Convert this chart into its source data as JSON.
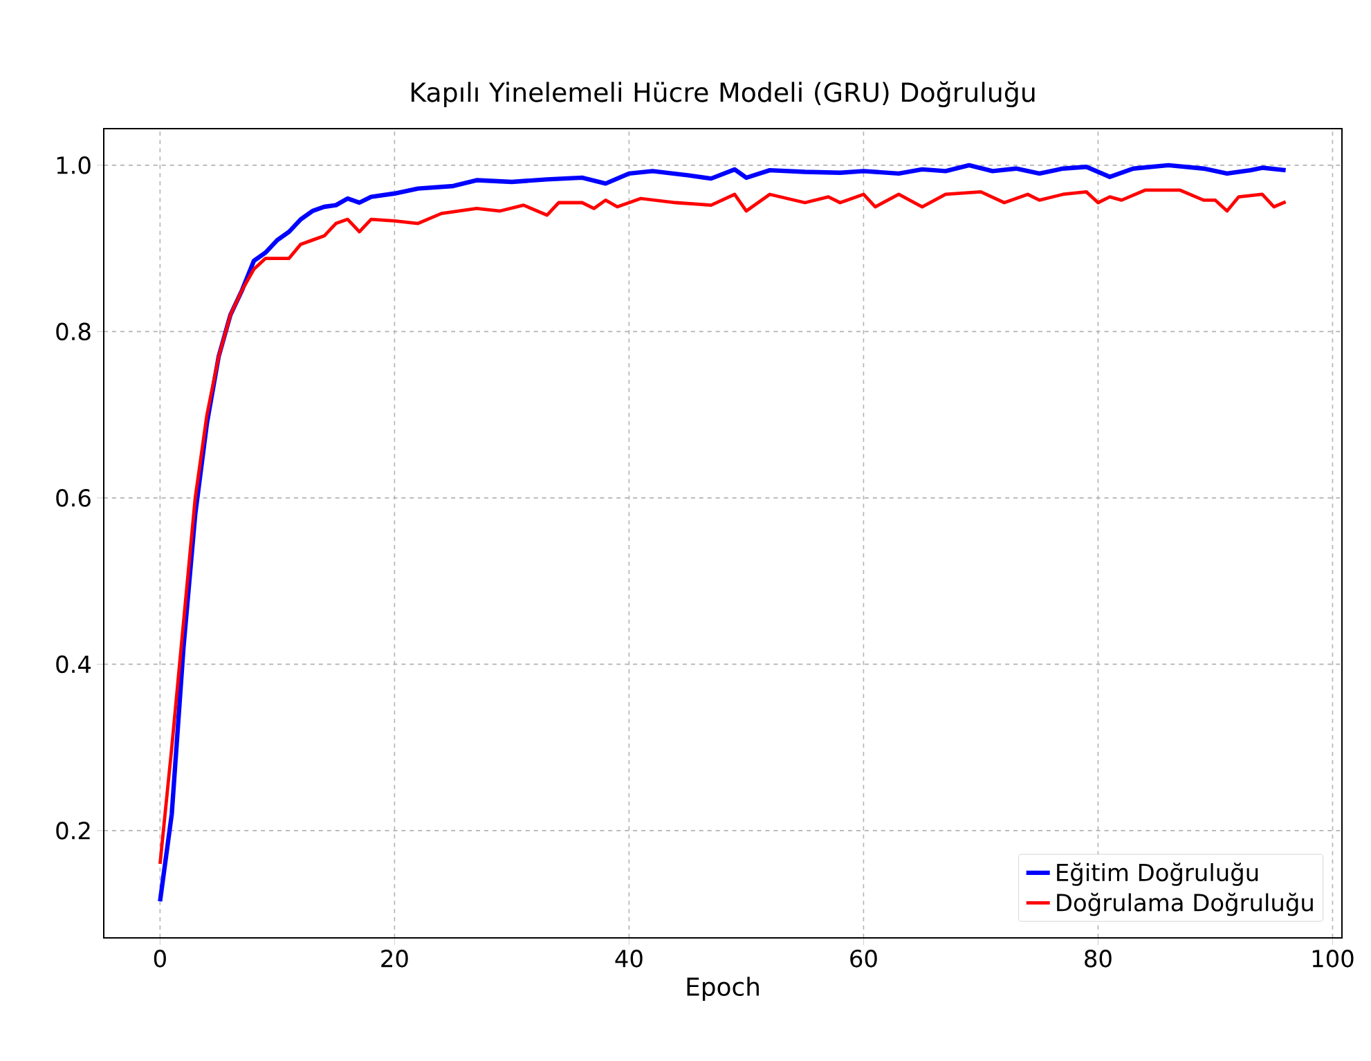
{
  "chart_data": {
    "type": "line",
    "title": "Kapılı Yinelemeli Hücre Modeli (GRU) Doğruluğu",
    "xlabel": "Epoch",
    "xlim": [
      -4.8,
      100.8
    ],
    "ylim": [
      0.071,
      1.044
    ],
    "xticks": [
      0,
      20,
      40,
      60,
      80,
      100
    ],
    "yticks": [
      0.2,
      0.4,
      0.6,
      0.8,
      {
        "value": 1,
        "label": "1.0"
      }
    ],
    "grid": true,
    "legend": "bottom right",
    "series": [
      {
        "name": "Eğitim Doğruluğu",
        "color": "#0000ff",
        "x": [
          0,
          1,
          2,
          3,
          4,
          5,
          6,
          7,
          8,
          9,
          10,
          11,
          12,
          13,
          14,
          15,
          16,
          17,
          18,
          20,
          22,
          25,
          27,
          30,
          33,
          36,
          38,
          40,
          42,
          45,
          47,
          49,
          50,
          52,
          55,
          58,
          60,
          63,
          65,
          67,
          69,
          71,
          73,
          75,
          77,
          79,
          81,
          83,
          86,
          89,
          91,
          93,
          94,
          96
        ],
        "values": [
          0.115,
          0.22,
          0.42,
          0.58,
          0.69,
          0.77,
          0.82,
          0.85,
          0.885,
          0.895,
          0.91,
          0.92,
          0.935,
          0.945,
          0.95,
          0.952,
          0.96,
          0.955,
          0.962,
          0.966,
          0.972,
          0.975,
          0.982,
          0.98,
          0.983,
          0.985,
          0.978,
          0.99,
          0.993,
          0.988,
          0.984,
          0.995,
          0.985,
          0.994,
          0.992,
          0.991,
          0.993,
          0.99,
          0.995,
          0.993,
          1.0,
          0.993,
          0.996,
          0.99,
          0.996,
          0.998,
          0.986,
          0.996,
          1.0,
          0.996,
          0.99,
          0.994,
          0.997,
          0.994
        ]
      },
      {
        "name": "Doğrulama Doğruluğu",
        "color": "#ff0000",
        "x": [
          0,
          1,
          2,
          3,
          4,
          5,
          6,
          7,
          8,
          9,
          10,
          11,
          12,
          13,
          14,
          15,
          16,
          17,
          18,
          20,
          22,
          24,
          27,
          29,
          31,
          33,
          34,
          36,
          37,
          38,
          39,
          41,
          44,
          47,
          49,
          50,
          52,
          55,
          57,
          58,
          60,
          61,
          63,
          65,
          67,
          70,
          72,
          74,
          75,
          77,
          79,
          80,
          81,
          82,
          84,
          87,
          89,
          90,
          91,
          92,
          94,
          95,
          96
        ],
        "values": [
          0.16,
          0.3,
          0.45,
          0.6,
          0.7,
          0.77,
          0.82,
          0.85,
          0.875,
          0.888,
          0.888,
          0.888,
          0.905,
          0.91,
          0.915,
          0.93,
          0.935,
          0.92,
          0.935,
          0.933,
          0.93,
          0.942,
          0.948,
          0.945,
          0.952,
          0.94,
          0.955,
          0.955,
          0.948,
          0.958,
          0.95,
          0.96,
          0.955,
          0.952,
          0.965,
          0.945,
          0.965,
          0.955,
          0.962,
          0.955,
          0.965,
          0.95,
          0.965,
          0.95,
          0.965,
          0.968,
          0.955,
          0.965,
          0.958,
          0.965,
          0.968,
          0.955,
          0.962,
          0.958,
          0.97,
          0.97,
          0.958,
          0.958,
          0.945,
          0.962,
          0.965,
          0.95,
          0.956
        ]
      }
    ]
  }
}
